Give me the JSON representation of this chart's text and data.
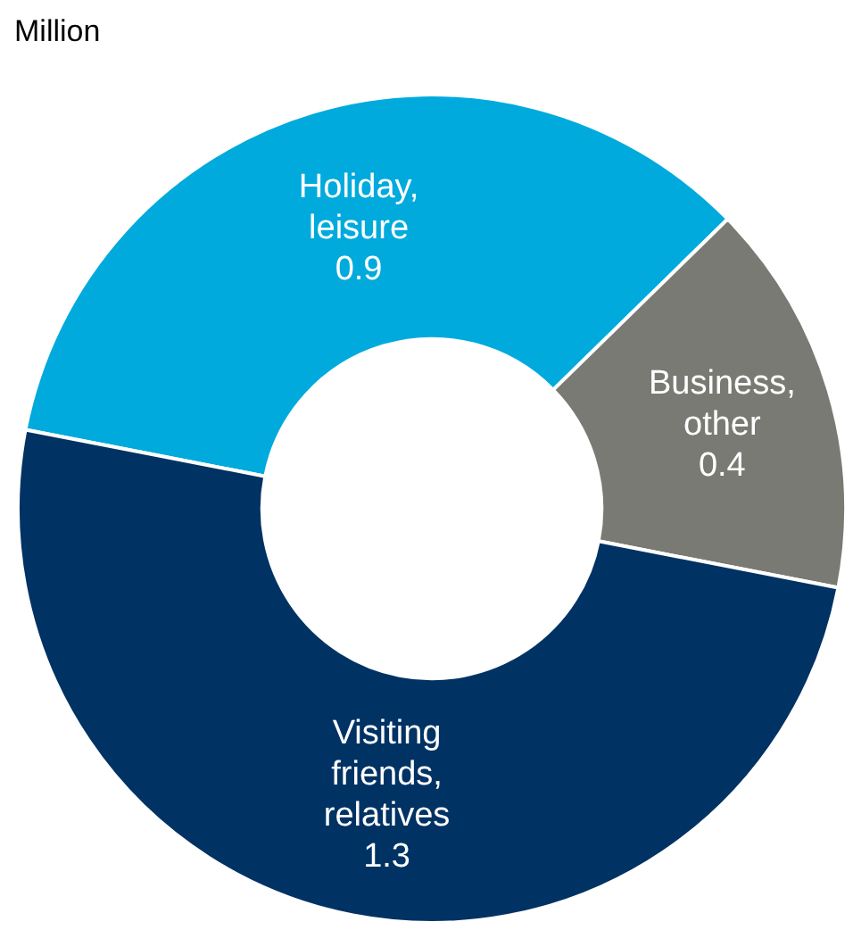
{
  "chart_data": {
    "type": "donut",
    "title": "Million",
    "categories": [
      "Holiday, leisure",
      "Business, other",
      "Visiting friends, relatives"
    ],
    "values": [
      0.9,
      0.4,
      1.3
    ],
    "colors": [
      "#00aadd",
      "#7a7a74",
      "#003263"
    ],
    "data_labels": true,
    "legend": false
  }
}
